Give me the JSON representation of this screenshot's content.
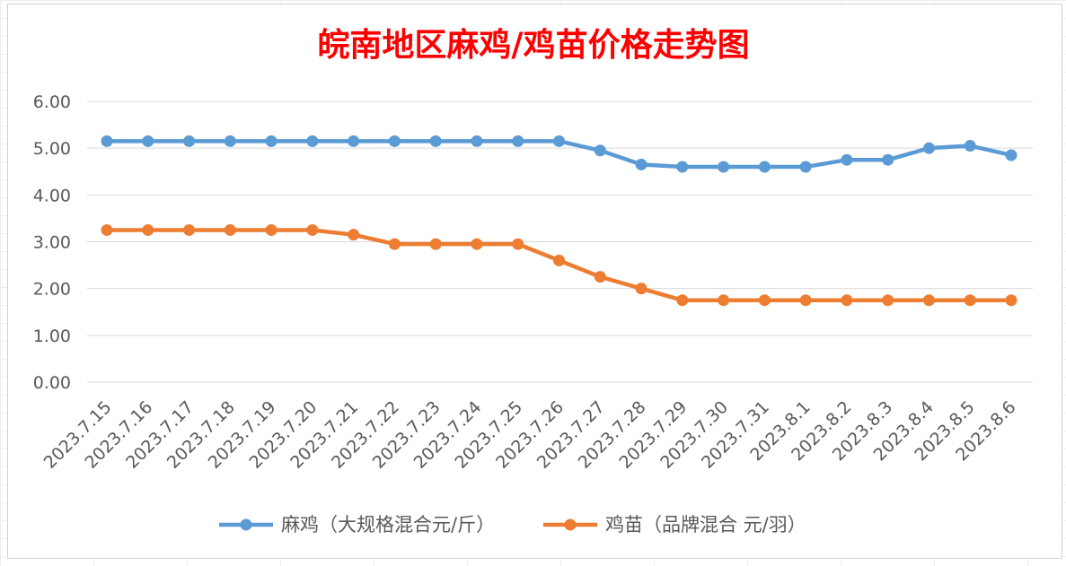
{
  "chart_data": {
    "type": "line",
    "title": "皖南地区麻鸡/鸡苗价格走势图",
    "categories": [
      "2023.7.15",
      "2023.7.16",
      "2023.7.17",
      "2023.7.18",
      "2023.7.19",
      "2023.7.20",
      "2023.7.21",
      "2023.7.22",
      "2023.7.23",
      "2023.7.24",
      "2023.7.25",
      "2023.7.26",
      "2023.7.27",
      "2023.7.28",
      "2023.7.29",
      "2023.7.30",
      "2023.7.31",
      "2023.8.1",
      "2023.8.2",
      "2023.8.3",
      "2023.8.4",
      "2023.8.5",
      "2023.8.6"
    ],
    "ylim": [
      0,
      6
    ],
    "yticks": [
      "0.00",
      "1.00",
      "2.00",
      "3.00",
      "4.00",
      "5.00",
      "6.00"
    ],
    "grid": true,
    "legend_position": "bottom",
    "series": [
      {
        "name": "麻鸡（大规格混合元/斤）",
        "color": "#5b9bd5",
        "values": [
          5.15,
          5.15,
          5.15,
          5.15,
          5.15,
          5.15,
          5.15,
          5.15,
          5.15,
          5.15,
          5.15,
          5.15,
          4.95,
          4.65,
          4.6,
          4.6,
          4.6,
          4.6,
          4.75,
          4.75,
          5.0,
          5.05,
          4.85
        ]
      },
      {
        "name": "鸡苗（品牌混合 元/羽）",
        "color": "#ed7d31",
        "values": [
          3.25,
          3.25,
          3.25,
          3.25,
          3.25,
          3.25,
          3.15,
          2.95,
          2.95,
          2.95,
          2.95,
          2.6,
          2.25,
          2.0,
          1.75,
          1.75,
          1.75,
          1.75,
          1.75,
          1.75,
          1.75,
          1.75,
          1.75
        ]
      }
    ]
  }
}
